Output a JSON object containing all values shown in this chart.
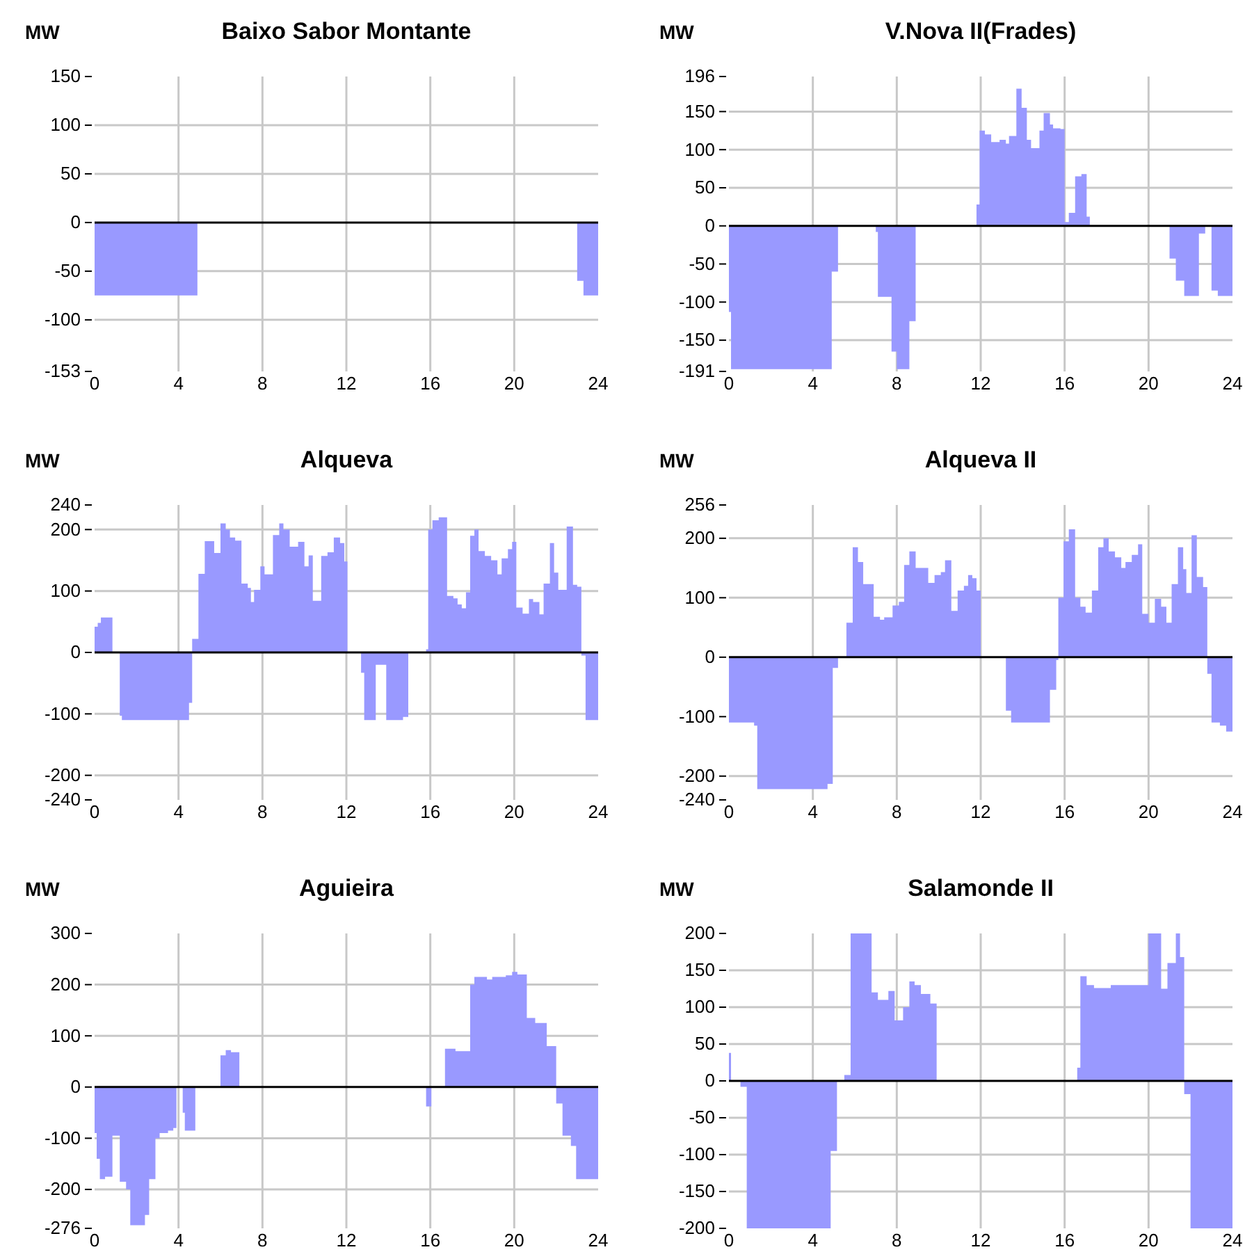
{
  "chart_data": [
    {
      "type": "area",
      "title": "Baixo Sabor Montante",
      "ylabel": "MW",
      "xlim": [
        0,
        24
      ],
      "xticks": [
        0,
        4,
        8,
        12,
        16,
        20,
        24
      ],
      "ylim": [
        -153,
        150
      ],
      "yticks": [
        -153,
        -100,
        -50,
        0,
        50,
        100,
        150
      ],
      "grid": true,
      "x": [
        0,
        4.9,
        4.9,
        23,
        23,
        23.3,
        23.3,
        24
      ],
      "series": [
        {
          "color": "#9999ff",
          "values": [
            -75,
            -75,
            0,
            0,
            -60,
            -60,
            -75,
            -75
          ]
        }
      ]
    },
    {
      "type": "area",
      "title": "V.Nova II(Frades)",
      "ylabel": "MW",
      "xlim": [
        0,
        24
      ],
      "xticks": [
        0,
        4,
        8,
        12,
        16,
        20,
        24
      ],
      "ylim": [
        -191,
        196
      ],
      "yticks": [
        -191,
        -150,
        -100,
        -50,
        0,
        50,
        100,
        150,
        196
      ],
      "grid": true,
      "x": [
        0,
        0.1,
        0.1,
        4.9,
        4.9,
        5.2,
        5.2,
        7.0,
        7.0,
        7.1,
        7.1,
        7.75,
        7.75,
        8.0,
        8.0,
        8.6,
        8.6,
        8.9,
        8.9,
        11.8,
        11.8,
        11.95,
        11.95,
        12.2,
        12.2,
        12.5,
        12.5,
        12.9,
        12.9,
        13.2,
        13.2,
        13.35,
        13.35,
        13.7,
        13.7,
        13.95,
        13.95,
        14.2,
        14.2,
        14.4,
        14.4,
        14.8,
        14.8,
        15.0,
        15.0,
        15.3,
        15.3,
        15.45,
        15.45,
        15.8,
        15.8,
        16.0,
        16.0,
        16.2,
        16.2,
        16.5,
        16.5,
        16.8,
        16.8,
        17.05,
        17.05,
        17.2,
        17.2,
        21.0,
        21.0,
        21.3,
        21.3,
        21.7,
        21.7,
        22.4,
        22.4,
        22.7,
        22.7,
        23.0,
        23.0,
        23.3,
        23.3,
        24
      ],
      "series": [
        {
          "color": "#9999ff",
          "values": [
            -113,
            -113,
            -188,
            -188,
            -60,
            -60,
            0,
            0,
            -8,
            -8,
            -93,
            -93,
            -165,
            -165,
            -188,
            -188,
            -125,
            -125,
            0,
            0,
            28,
            28,
            125,
            125,
            120,
            120,
            110,
            110,
            113,
            113,
            108,
            108,
            118,
            118,
            180,
            180,
            155,
            155,
            113,
            113,
            102,
            102,
            125,
            125,
            148,
            148,
            133,
            133,
            128,
            128,
            127,
            127,
            5,
            5,
            17,
            17,
            65,
            65,
            68,
            68,
            12,
            12,
            0,
            0,
            -43,
            -43,
            -72,
            -72,
            -92,
            -92,
            -10,
            -10,
            0,
            0,
            -85,
            -85,
            -92,
            -92
          ]
        }
      ]
    },
    {
      "type": "area",
      "title": "Alqueva",
      "ylabel": "MW",
      "xlim": [
        0,
        24
      ],
      "xticks": [
        0,
        4,
        8,
        12,
        16,
        20,
        24
      ],
      "ylim": [
        -240,
        240
      ],
      "yticks": [
        -240,
        -200,
        -100,
        0,
        100,
        200,
        240
      ],
      "grid": true,
      "x": [
        0,
        0.15,
        0.15,
        0.3,
        0.3,
        0.85,
        0.85,
        1.2,
        1.2,
        1.3,
        1.3,
        4.5,
        4.5,
        4.65,
        4.65,
        4.95,
        4.95,
        5.25,
        5.25,
        5.7,
        5.7,
        6.0,
        6.0,
        6.25,
        6.25,
        6.45,
        6.45,
        6.7,
        6.7,
        7.0,
        7.0,
        7.3,
        7.3,
        7.45,
        7.45,
        7.6,
        7.6,
        7.9,
        7.9,
        8.1,
        8.1,
        8.5,
        8.5,
        8.8,
        8.8,
        9.0,
        9.0,
        9.3,
        9.3,
        9.7,
        9.7,
        10.0,
        10.0,
        10.2,
        10.2,
        10.4,
        10.4,
        10.8,
        10.8,
        11.1,
        11.1,
        11.4,
        11.4,
        11.7,
        11.7,
        11.9,
        11.9,
        12.05,
        12.05,
        12.7,
        12.7,
        12.85,
        12.85,
        13.4,
        13.4,
        13.9,
        13.9,
        14.7,
        14.7,
        14.95,
        14.95,
        15.8,
        15.8,
        15.9,
        15.9,
        16.1,
        16.1,
        16.4,
        16.4,
        16.8,
        16.8,
        17.1,
        17.1,
        17.3,
        17.3,
        17.5,
        17.5,
        17.7,
        17.7,
        17.9,
        17.9,
        18.1,
        18.1,
        18.3,
        18.3,
        18.6,
        18.6,
        18.9,
        18.9,
        19.2,
        19.2,
        19.4,
        19.4,
        19.7,
        19.7,
        19.9,
        19.9,
        20.1,
        20.1,
        20.4,
        20.4,
        20.7,
        20.7,
        20.9,
        20.9,
        21.2,
        21.2,
        21.4,
        21.4,
        21.7,
        21.7,
        21.9,
        21.9,
        22.1,
        22.1,
        22.5,
        22.5,
        22.8,
        22.8,
        23.0,
        23.0,
        23.2,
        23.2,
        23.4,
        23.4,
        24
      ],
      "series": [
        {
          "color": "#9999ff",
          "values": [
            42,
            42,
            48,
            48,
            57,
            57,
            0,
            0,
            -103,
            -103,
            -110,
            -110,
            -82,
            -82,
            22,
            22,
            128,
            128,
            181,
            181,
            162,
            162,
            210,
            210,
            200,
            200,
            187,
            187,
            182,
            182,
            112,
            112,
            105,
            105,
            82,
            82,
            102,
            102,
            140,
            140,
            127,
            127,
            191,
            191,
            210,
            210,
            200,
            200,
            172,
            172,
            180,
            180,
            140,
            140,
            158,
            158,
            84,
            84,
            157,
            157,
            163,
            163,
            187,
            187,
            178,
            178,
            148,
            148,
            0,
            0,
            -33,
            -33,
            -110,
            -110,
            -20,
            -20,
            -110,
            -110,
            -105,
            -105,
            0,
            0,
            5,
            5,
            200,
            200,
            215,
            215,
            220,
            220,
            92,
            92,
            88,
            88,
            78,
            78,
            72,
            72,
            98,
            98,
            190,
            190,
            200,
            200,
            165,
            165,
            157,
            157,
            150,
            150,
            127,
            127,
            153,
            153,
            168,
            168,
            180,
            180,
            73,
            73,
            63,
            63,
            87,
            87,
            82,
            82,
            62,
            62,
            112,
            112,
            178,
            178,
            130,
            130,
            102,
            102,
            205,
            205,
            110,
            110,
            107,
            107,
            -5,
            -5,
            -110,
            -110
          ]
        }
      ]
    },
    {
      "type": "area",
      "title": "Alqueva II",
      "ylabel": "MW",
      "xlim": [
        0,
        24
      ],
      "xticks": [
        0,
        4,
        8,
        12,
        16,
        20,
        24
      ],
      "ylim": [
        -240,
        256
      ],
      "yticks": [
        -240,
        -200,
        -100,
        0,
        100,
        200,
        256
      ],
      "grid": true,
      "x": [
        0,
        1.2,
        1.2,
        1.35,
        1.35,
        4.7,
        4.7,
        4.95,
        4.95,
        5.2,
        5.2,
        5.6,
        5.6,
        5.9,
        5.9,
        6.15,
        6.15,
        6.4,
        6.4,
        6.9,
        6.9,
        7.2,
        7.2,
        7.4,
        7.4,
        7.8,
        7.8,
        8.1,
        8.1,
        8.35,
        8.35,
        8.6,
        8.6,
        8.9,
        8.9,
        9.5,
        9.5,
        9.8,
        9.8,
        10.1,
        10.1,
        10.3,
        10.3,
        10.6,
        10.6,
        10.9,
        10.9,
        11.2,
        11.2,
        11.4,
        11.4,
        11.6,
        11.6,
        11.8,
        11.8,
        12.0,
        12.0,
        13.2,
        13.2,
        13.45,
        13.45,
        15.3,
        15.3,
        15.6,
        15.6,
        15.7,
        15.7,
        15.95,
        15.95,
        16.2,
        16.2,
        16.5,
        16.5,
        16.75,
        16.75,
        17.0,
        17.0,
        17.3,
        17.3,
        17.6,
        17.6,
        17.85,
        17.85,
        18.1,
        18.1,
        18.4,
        18.4,
        18.7,
        18.7,
        18.9,
        18.9,
        19.2,
        19.2,
        19.5,
        19.5,
        19.7,
        19.7,
        20.0,
        20.0,
        20.3,
        20.3,
        20.6,
        20.6,
        20.85,
        20.85,
        21.1,
        21.1,
        21.4,
        21.4,
        21.65,
        21.65,
        21.8,
        21.8,
        22.05,
        22.05,
        22.3,
        22.3,
        22.6,
        22.6,
        22.8,
        22.8,
        23.0,
        23.0,
        23.4,
        23.4,
        23.7,
        23.7,
        24
      ],
      "series": [
        {
          "color": "#9999ff",
          "values": [
            -110,
            -110,
            -115,
            -115,
            -222,
            -222,
            -213,
            -213,
            -18,
            -18,
            0,
            0,
            58,
            58,
            185,
            185,
            160,
            160,
            123,
            123,
            68,
            68,
            63,
            63,
            67,
            67,
            87,
            87,
            93,
            93,
            155,
            155,
            178,
            178,
            150,
            150,
            125,
            125,
            138,
            138,
            143,
            143,
            163,
            163,
            78,
            78,
            112,
            112,
            120,
            120,
            138,
            138,
            133,
            133,
            112,
            112,
            0,
            0,
            -90,
            -90,
            -110,
            -110,
            -55,
            -55,
            -5,
            -5,
            100,
            100,
            195,
            195,
            215,
            215,
            100,
            100,
            85,
            85,
            75,
            75,
            112,
            112,
            185,
            185,
            200,
            200,
            178,
            178,
            168,
            168,
            150,
            150,
            160,
            160,
            172,
            172,
            190,
            190,
            73,
            73,
            58,
            58,
            98,
            98,
            85,
            85,
            58,
            58,
            123,
            123,
            185,
            185,
            148,
            148,
            108,
            108,
            205,
            205,
            135,
            135,
            118,
            118,
            -28,
            -28,
            -110,
            -110,
            -115,
            -115,
            -125,
            -125
          ]
        }
      ]
    },
    {
      "type": "area",
      "title": "Aguieira",
      "ylabel": "MW",
      "xlim": [
        0,
        24
      ],
      "xticks": [
        0,
        4,
        8,
        12,
        16,
        20,
        24
      ],
      "ylim": [
        -276,
        300
      ],
      "yticks": [
        -276,
        -200,
        -100,
        0,
        100,
        200,
        300
      ],
      "grid": true,
      "x": [
        0,
        0.1,
        0.1,
        0.25,
        0.25,
        0.5,
        0.5,
        0.85,
        0.85,
        1.2,
        1.2,
        1.5,
        1.5,
        1.7,
        1.7,
        2.4,
        2.4,
        2.6,
        2.6,
        2.9,
        2.9,
        3.1,
        3.1,
        3.5,
        3.5,
        3.75,
        3.75,
        3.9,
        3.9,
        4.2,
        4.2,
        4.3,
        4.3,
        4.8,
        4.8,
        6.0,
        6.0,
        6.25,
        6.25,
        6.5,
        6.5,
        6.9,
        6.9,
        15.8,
        15.8,
        16.05,
        16.05,
        16.7,
        16.7,
        17.2,
        17.2,
        17.9,
        17.9,
        18.1,
        18.1,
        18.7,
        18.7,
        18.95,
        18.95,
        19.6,
        19.6,
        19.9,
        19.9,
        20.15,
        20.15,
        20.6,
        20.6,
        21.0,
        21.0,
        21.55,
        21.55,
        22.0,
        22.0,
        22.3,
        22.3,
        22.7,
        22.7,
        22.95,
        22.95,
        24
      ],
      "series": [
        {
          "color": "#9999ff",
          "values": [
            -90,
            -90,
            -140,
            -140,
            -180,
            -180,
            -175,
            -175,
            -95,
            -95,
            -185,
            -185,
            -200,
            -200,
            -270,
            -270,
            -250,
            -250,
            -180,
            -180,
            -100,
            -100,
            -90,
            -90,
            -85,
            -85,
            -80,
            -80,
            0,
            0,
            -50,
            -50,
            -85,
            -85,
            0,
            0,
            62,
            62,
            72,
            72,
            68,
            68,
            0,
            0,
            -38,
            -38,
            0,
            0,
            75,
            75,
            70,
            70,
            200,
            200,
            215,
            215,
            210,
            210,
            215,
            215,
            218,
            218,
            225,
            225,
            220,
            220,
            135,
            135,
            125,
            125,
            80,
            80,
            -32,
            -32,
            -95,
            -95,
            -115,
            -115,
            -180,
            -180
          ]
        }
      ]
    },
    {
      "type": "area",
      "title": "Salamonde II",
      "ylabel": "MW",
      "xlim": [
        0,
        24
      ],
      "xticks": [
        0,
        4,
        8,
        12,
        16,
        20,
        24
      ],
      "ylim": [
        -200,
        200
      ],
      "yticks": [
        -200,
        -150,
        -100,
        -50,
        0,
        50,
        100,
        150,
        200
      ],
      "grid": true,
      "x": [
        0,
        0.1,
        0.1,
        0.55,
        0.55,
        0.85,
        0.85,
        4.85,
        4.85,
        5.15,
        5.15,
        5.5,
        5.5,
        5.8,
        5.8,
        6.8,
        6.8,
        7.1,
        7.1,
        7.6,
        7.6,
        7.9,
        7.9,
        8.3,
        8.3,
        8.6,
        8.6,
        8.85,
        8.85,
        9.15,
        9.15,
        9.6,
        9.6,
        9.9,
        9.9,
        16.6,
        16.6,
        16.75,
        16.75,
        17.05,
        17.05,
        17.4,
        17.4,
        18.2,
        18.2,
        20.0,
        20.0,
        20.6,
        20.6,
        20.9,
        20.9,
        21.3,
        21.3,
        21.5,
        21.5,
        21.7,
        21.7,
        22.0,
        22.0,
        24
      ],
      "series": [
        {
          "color": "#9999ff",
          "values": [
            38,
            38,
            0,
            0,
            -8,
            -8,
            -200,
            -200,
            -95,
            -95,
            0,
            0,
            8,
            8,
            200,
            200,
            120,
            120,
            110,
            110,
            122,
            122,
            82,
            82,
            100,
            100,
            135,
            135,
            130,
            130,
            118,
            118,
            105,
            105,
            0,
            0,
            18,
            18,
            142,
            142,
            130,
            130,
            126,
            126,
            130,
            130,
            200,
            200,
            125,
            125,
            160,
            160,
            200,
            200,
            168,
            168,
            -18,
            -18,
            -200,
            -200
          ]
        }
      ]
    }
  ]
}
